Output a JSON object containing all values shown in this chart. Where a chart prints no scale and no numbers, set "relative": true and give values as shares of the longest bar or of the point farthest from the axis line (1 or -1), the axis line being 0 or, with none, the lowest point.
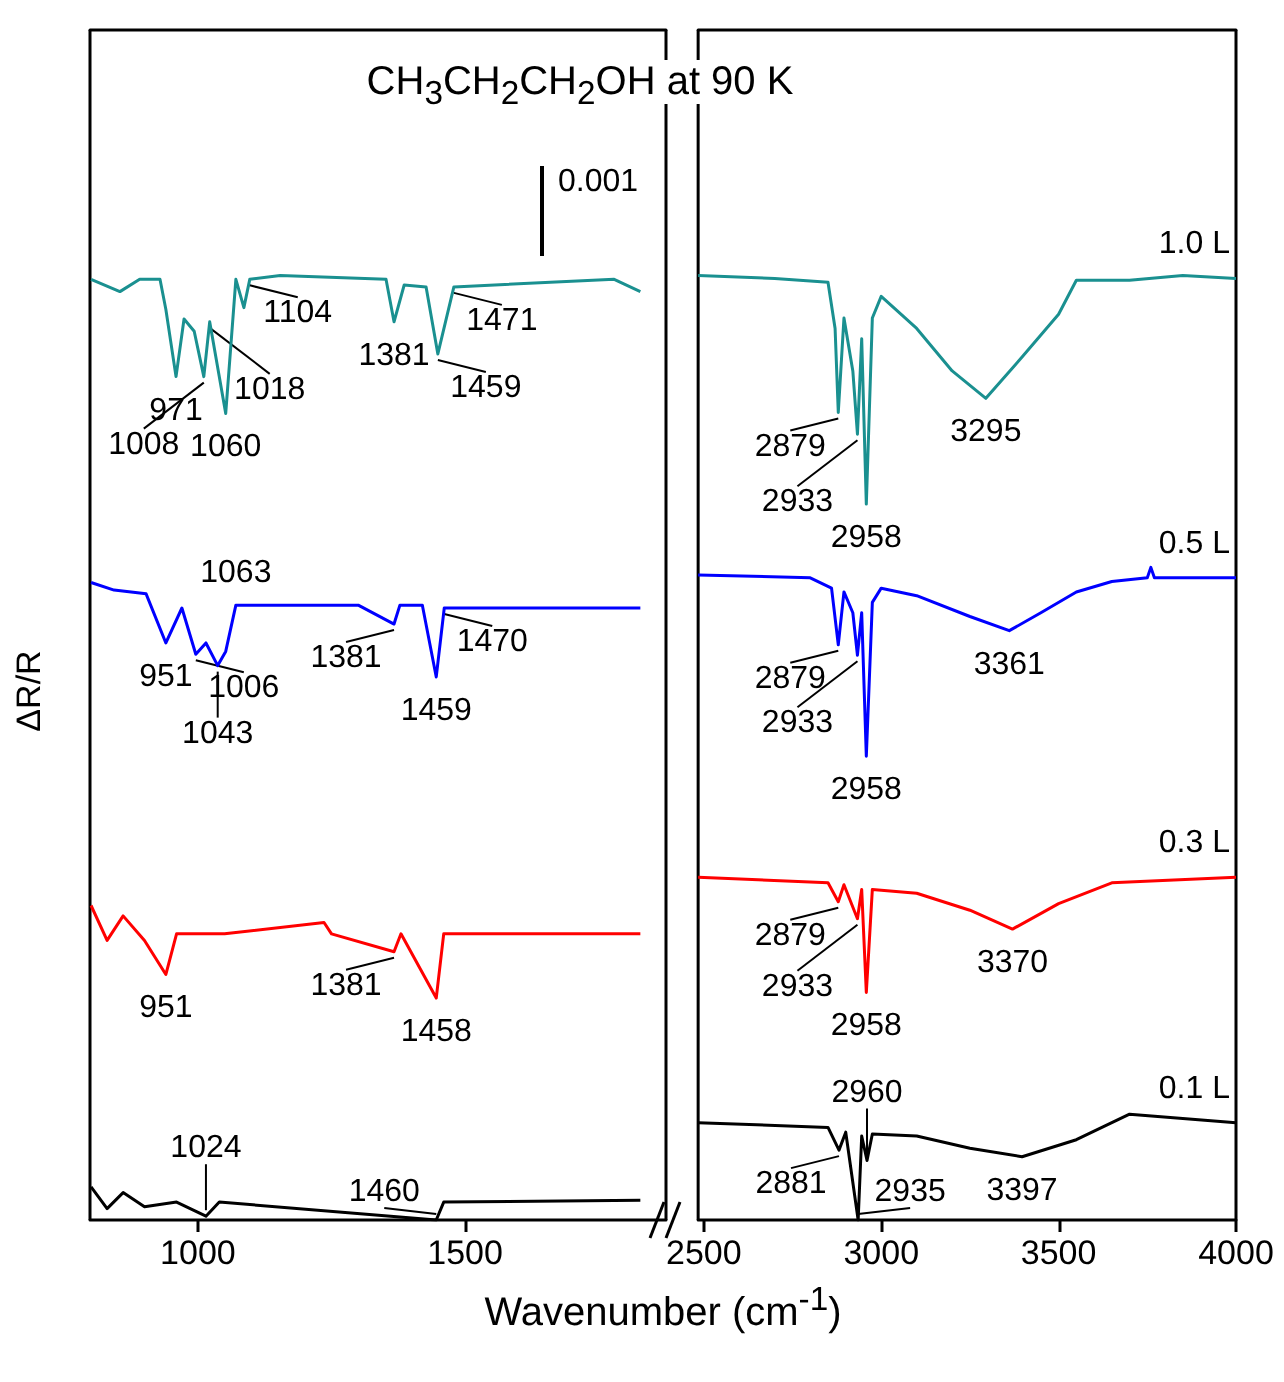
{
  "chart_data": [
    {
      "type": "line",
      "relative": true,
      "title": "CH$_{3}$CH$_{2}$CH$_{2}$OH at 90 K",
      "ylabel": "ΔR/R",
      "xlim": [
        798,
        1876
      ],
      "xticks": [
        1000,
        1500
      ],
      "series": [
        {
          "color": "#1a9090",
          "x": [
            800,
            854,
            891,
            929,
            940,
            959,
            974,
            993,
            1011,
            1022,
            1052,
            1071,
            1086,
            1097,
            1154,
            1352,
            1367,
            1386,
            1427,
            1449,
            1479,
            1779,
            1828
          ],
          "values": [
            0.996,
            0.983,
            0.996,
            0.996,
            0.964,
            0.893,
            0.954,
            0.941,
            0.893,
            0.951,
            0.854,
            0.996,
            0.966,
            0.996,
            1,
            0.996,
            0.951,
            0.99,
            0.988,
            0.917,
            0.988,
            0.996,
            0.983
          ]
        },
        {
          "color": "#0000ff",
          "x": [
            800,
            843,
            903,
            940,
            970,
            996,
            1015,
            1037,
            1052,
            1071,
            1300,
            1367,
            1378,
            1420,
            1446,
            1461,
            1828
          ],
          "values": [
            0.675,
            0.667,
            0.663,
            0.611,
            0.648,
            0.599,
            0.611,
            0.587,
            0.602,
            0.651,
            0.651,
            0.631,
            0.651,
            0.651,
            0.575,
            0.648,
            0.648
          ]
        },
        {
          "color": "#ff0000",
          "x": [
            800,
            830,
            860,
            900,
            940,
            960,
            1050,
            1236,
            1250,
            1367,
            1380,
            1446,
            1460,
            1828
          ],
          "values": [
            0.333,
            0.296,
            0.322,
            0.296,
            0.26,
            0.303,
            0.303,
            0.315,
            0.303,
            0.284,
            0.303,
            0.235,
            0.303,
            0.303
          ]
        },
        {
          "color": "#000000",
          "x": [
            800,
            830,
            860,
            900,
            960,
            1015,
            1040,
            1446,
            1460,
            1828
          ],
          "values": [
            0.035,
            0.012,
            0.029,
            0.014,
            0.019,
            0.004,
            0.019,
            0,
            0.019,
            0.021
          ]
        }
      ],
      "annotations": [
        {
          "text": "1104",
          "x": 1097,
          "y": 0.996
        },
        {
          "text": "971",
          "x": 959,
          "y": 0.893
        },
        {
          "text": "1060",
          "x": 1052,
          "y": 0.854
        },
        {
          "text": "1008",
          "x": 1011,
          "y": 0.893
        },
        {
          "text": "1018",
          "x": 1022,
          "y": 0.951
        },
        {
          "text": "1381",
          "x": 1367,
          "y": 0.951
        },
        {
          "text": "1459",
          "x": 1449,
          "y": 0.917
        },
        {
          "text": "1471",
          "x": 1479,
          "y": 0.988
        },
        {
          "text": "1381",
          "x": 1367,
          "y": 0.631
        },
        {
          "text": "951",
          "x": 940,
          "y": 0.611
        },
        {
          "text": "1063",
          "x": 1071,
          "y": 0.651
        },
        {
          "text": "1006",
          "x": 996,
          "y": 0.599
        },
        {
          "text": "1043",
          "x": 1037,
          "y": 0.587
        },
        {
          "text": "1459",
          "x": 1446,
          "y": 0.575
        },
        {
          "text": "1470",
          "x": 1461,
          "y": 0.648
        },
        {
          "text": "951",
          "x": 940,
          "y": 0.26
        },
        {
          "text": "1381",
          "x": 1367,
          "y": 0.284
        },
        {
          "text": "1458",
          "x": 1446,
          "y": 0.235
        },
        {
          "text": "1024",
          "x": 1015,
          "y": 0.004
        },
        {
          "text": "1460",
          "x": 1446,
          "y": 0
        },
        "0.001"
      ]
    },
    {
      "type": "line",
      "relative": true,
      "xlabel": "Wavenumber (cm$^{-1}$)",
      "xlim": [
        2484,
        4000
      ],
      "xticks": [
        2500,
        3000,
        3500,
        4000
      ],
      "series": [
        {
          "name": "1.0 L",
          "color": "#1a9090",
          "x": [
            2484,
            2700,
            2850,
            2870,
            2879,
            2895,
            2920,
            2933,
            2945,
            2958,
            2975,
            3000,
            3100,
            3200,
            3295,
            3400,
            3500,
            3550,
            3700,
            3850,
            4000
          ],
          "values": [
            1,
            0.997,
            0.993,
            0.944,
            0.855,
            0.955,
            0.899,
            0.832,
            0.933,
            0.758,
            0.955,
            0.978,
            0.944,
            0.899,
            0.87,
            0.915,
            0.959,
            0.995,
            0.995,
            1,
            0.997
          ]
        },
        {
          "name": "0.5 L",
          "color": "#0000ff",
          "x": [
            2484,
            2800,
            2860,
            2879,
            2895,
            2920,
            2933,
            2945,
            2958,
            2975,
            3000,
            3100,
            3250,
            3361,
            3450,
            3550,
            3650,
            3750,
            3760,
            3770,
            4000
          ],
          "values": [
            0.683,
            0.68,
            0.669,
            0.609,
            0.665,
            0.643,
            0.598,
            0.643,
            0.491,
            0.654,
            0.669,
            0.661,
            0.639,
            0.624,
            0.643,
            0.665,
            0.676,
            0.68,
            0.691,
            0.68,
            0.68
          ]
        },
        {
          "name": "0.3 L",
          "color": "#ff0000",
          "x": [
            2484,
            2850,
            2879,
            2895,
            2933,
            2945,
            2958,
            2975,
            3100,
            3250,
            3370,
            3500,
            3650,
            4000
          ],
          "values": [
            0.363,
            0.357,
            0.337,
            0.355,
            0.319,
            0.35,
            0.241,
            0.35,
            0.346,
            0.328,
            0.308,
            0.335,
            0.357,
            0.363
          ]
        },
        {
          "name": "0.1 L",
          "color": "#000000",
          "x": [
            2484,
            2850,
            2881,
            2900,
            2935,
            2945,
            2960,
            2975,
            3100,
            3250,
            3397,
            3550,
            3700,
            4000
          ],
          "values": [
            0.103,
            0.098,
            0.074,
            0.093,
            0,
            0.089,
            0.063,
            0.091,
            0.089,
            0.076,
            0.067,
            0.085,
            0.112,
            0.103
          ]
        }
      ],
      "annotations": [
        {
          "text": "2879",
          "x": 2879,
          "y": 0.855
        },
        {
          "text": "2933",
          "x": 2933,
          "y": 0.832
        },
        {
          "text": "2958",
          "x": 2958,
          "y": 0.758
        },
        {
          "text": "3295",
          "x": 3295,
          "y": 0.87
        },
        {
          "text": "2879",
          "x": 2879,
          "y": 0.609
        },
        {
          "text": "2933",
          "x": 2933,
          "y": 0.598
        },
        {
          "text": "2958",
          "x": 2958,
          "y": 0.491
        },
        {
          "text": "3361",
          "x": 3361,
          "y": 0.624
        },
        {
          "text": "2879",
          "x": 2879,
          "y": 0.337
        },
        {
          "text": "2933",
          "x": 2933,
          "y": 0.319
        },
        {
          "text": "2958",
          "x": 2958,
          "y": 0.241
        },
        {
          "text": "3370",
          "x": 3370,
          "y": 0.308
        },
        {
          "text": "2881",
          "x": 2881,
          "y": 0.074
        },
        {
          "text": "2935",
          "x": 2935,
          "y": 0
        },
        {
          "text": "2960",
          "x": 2960,
          "y": 0.063
        },
        {
          "text": "3397",
          "x": 3397,
          "y": 0.067
        }
      ]
    }
  ]
}
